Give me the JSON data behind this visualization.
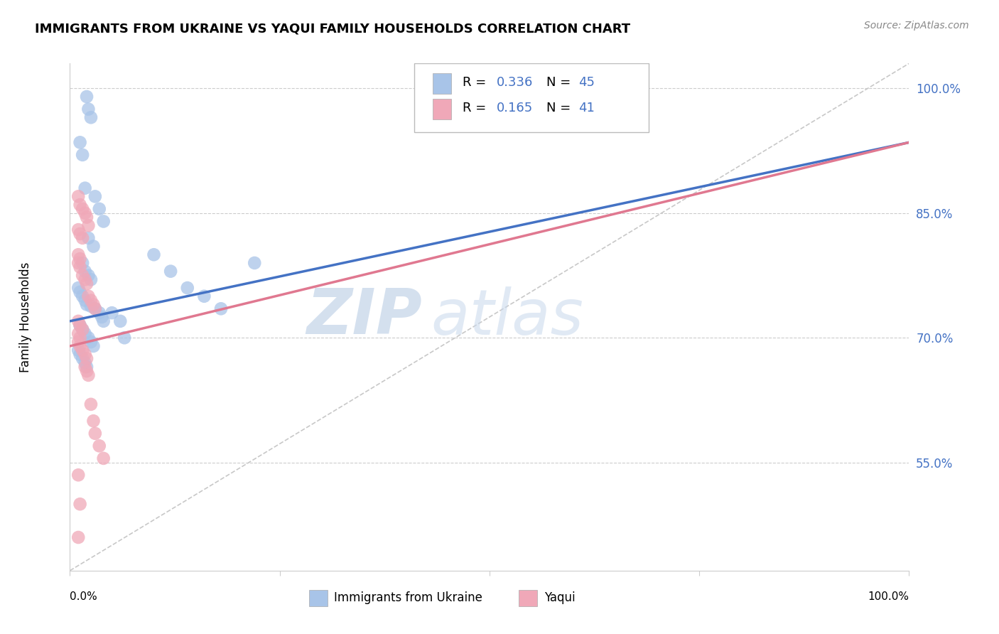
{
  "title": "IMMIGRANTS FROM UKRAINE VS YAQUI FAMILY HOUSEHOLDS CORRELATION CHART",
  "source": "Source: ZipAtlas.com",
  "ylabel": "Family Households",
  "watermark_zip": "ZIP",
  "watermark_atlas": "atlas",
  "xlim": [
    0.0,
    1.0
  ],
  "ylim": [
    0.42,
    1.03
  ],
  "yticks": [
    0.55,
    0.7,
    0.85,
    1.0
  ],
  "ytick_labels": [
    "55.0%",
    "70.0%",
    "85.0%",
    "100.0%"
  ],
  "legend_r1": "0.336",
  "legend_n1": "45",
  "legend_r2": "0.165",
  "legend_n2": "41",
  "blue_color": "#a8c4e8",
  "pink_color": "#f0a8b8",
  "trend_blue": "#4472c4",
  "trend_pink": "#e07890",
  "diagonal_color": "#c8c8c8",
  "value_color": "#4472c4",
  "trend_blue_start_y": 0.72,
  "trend_blue_end_y": 0.935,
  "trend_pink_start_y": 0.69,
  "trend_pink_end_y": 0.935,
  "ukraine_x": [
    0.02,
    0.022,
    0.025,
    0.012,
    0.015,
    0.018,
    0.03,
    0.035,
    0.04,
    0.022,
    0.028,
    0.015,
    0.018,
    0.022,
    0.025,
    0.01,
    0.012,
    0.015,
    0.018,
    0.02,
    0.025,
    0.03,
    0.035,
    0.038,
    0.04,
    0.012,
    0.015,
    0.018,
    0.022,
    0.025,
    0.028,
    0.01,
    0.012,
    0.015,
    0.018,
    0.02,
    0.05,
    0.06,
    0.065,
    0.1,
    0.12,
    0.14,
    0.16,
    0.18,
    0.22
  ],
  "ukraine_y": [
    0.99,
    0.975,
    0.965,
    0.935,
    0.92,
    0.88,
    0.87,
    0.855,
    0.84,
    0.82,
    0.81,
    0.79,
    0.78,
    0.775,
    0.77,
    0.76,
    0.755,
    0.75,
    0.745,
    0.74,
    0.738,
    0.735,
    0.73,
    0.725,
    0.72,
    0.715,
    0.71,
    0.705,
    0.7,
    0.695,
    0.69,
    0.685,
    0.68,
    0.675,
    0.67,
    0.665,
    0.73,
    0.72,
    0.7,
    0.8,
    0.78,
    0.76,
    0.75,
    0.735,
    0.79
  ],
  "yaqui_x": [
    0.01,
    0.012,
    0.015,
    0.018,
    0.02,
    0.022,
    0.01,
    0.012,
    0.015,
    0.01,
    0.012,
    0.01,
    0.012,
    0.015,
    0.018,
    0.02,
    0.022,
    0.025,
    0.028,
    0.03,
    0.01,
    0.012,
    0.015,
    0.01,
    0.012,
    0.01,
    0.012,
    0.015,
    0.018,
    0.02,
    0.018,
    0.02,
    0.022,
    0.025,
    0.028,
    0.03,
    0.035,
    0.04,
    0.01,
    0.012,
    0.01
  ],
  "yaqui_y": [
    0.87,
    0.86,
    0.855,
    0.85,
    0.845,
    0.835,
    0.83,
    0.825,
    0.82,
    0.8,
    0.795,
    0.79,
    0.785,
    0.775,
    0.77,
    0.765,
    0.75,
    0.745,
    0.74,
    0.735,
    0.72,
    0.715,
    0.71,
    0.705,
    0.7,
    0.695,
    0.69,
    0.685,
    0.68,
    0.675,
    0.665,
    0.66,
    0.655,
    0.62,
    0.6,
    0.585,
    0.57,
    0.555,
    0.535,
    0.5,
    0.46
  ]
}
